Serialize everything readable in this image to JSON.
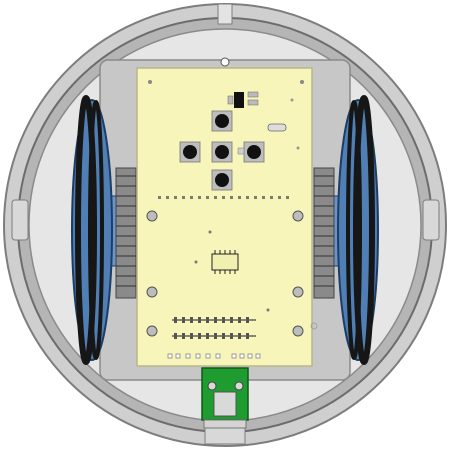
{
  "view": {
    "subject": "round-robot-top-view",
    "background": "#ffffff"
  },
  "colors": {
    "shell_outer": "#cfcfcf",
    "shell_ring": "#a9a9a9",
    "shell_inner": "#e7e7e7",
    "tray": "#c9c9c9",
    "board": "#f7f5b9",
    "board_edge": "#b8b58a",
    "wheel_blue": "#4f7fb5",
    "wheel_dark": "#1d3d66",
    "tire_black": "#161616",
    "button_black": "#111111",
    "pad_gray": "#bdbdbd",
    "connector_green": "#1f9c2f",
    "gear_gray": "#777777"
  },
  "icons": {
    "dpad": "dpad-buttons",
    "chip": "ic-chip",
    "usb": "usb-connector"
  },
  "counts": {
    "dpad_buttons": 5,
    "mount_holes": 6,
    "header_pins": 10
  }
}
